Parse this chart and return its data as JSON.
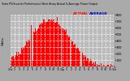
{
  "title": "Solar PV/Inverter Performance West Array",
  "title2": "Actual & Average Power Output",
  "bg_color": "#aaaaaa",
  "plot_bg_color": "#bbbbbb",
  "fill_color": "#ff0000",
  "grid_color": "#ffffff",
  "ylim": [
    0,
    800
  ],
  "yticks": [
    100,
    200,
    300,
    400,
    500,
    600,
    700,
    800
  ],
  "ytick_labels": [
    "1",
    "2",
    "3",
    "4",
    "5",
    "6",
    "7",
    "8"
  ],
  "num_points": 288,
  "peak_index": 110,
  "peak_value": 720,
  "sigma": 55,
  "white_gaps": [
    55,
    60,
    140,
    165,
    195
  ],
  "spikes": [
    45,
    50,
    52,
    55,
    58,
    62,
    130,
    160,
    190
  ],
  "legend_actual": "ACTUAL",
  "legend_avg": "AVERAGE",
  "legend_actual_color": "#ff0000",
  "legend_avg_color": "#0000cc",
  "xtick_labels": [
    "12a",
    "1",
    "2",
    "3",
    "4",
    "5",
    "6",
    "7",
    "8",
    "9",
    "10",
    "11",
    "12p",
    "1",
    "2",
    "3",
    "4",
    "5",
    "6",
    "7",
    "8",
    "9",
    "10",
    "11",
    "12a"
  ],
  "title_fontsize": 3.5,
  "tick_fontsize": 2.8,
  "legend_fontsize": 3.2
}
